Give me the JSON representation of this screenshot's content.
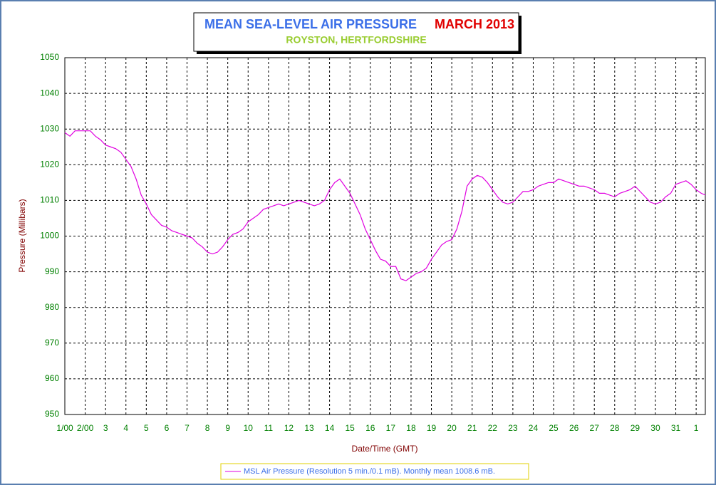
{
  "chart_data": {
    "type": "line",
    "title": "MEAN SEA-LEVEL AIR PRESSURE",
    "period": "MARCH 2013",
    "subtitle": "ROYSTON, HERTFORDSHIRE",
    "xlabel": "Date/Time (GMT)",
    "ylabel": "Pressure (Millibars)",
    "xlim": [
      0,
      31.45
    ],
    "ylim": [
      950,
      1050
    ],
    "yticks": [
      950,
      960,
      970,
      980,
      990,
      1000,
      1010,
      1020,
      1030,
      1040,
      1050
    ],
    "xticks": [
      {
        "value": 0,
        "label": "1/00"
      },
      {
        "value": 1,
        "label": "2/00"
      },
      {
        "value": 2,
        "label": "3"
      },
      {
        "value": 3,
        "label": "4"
      },
      {
        "value": 4,
        "label": "5"
      },
      {
        "value": 5,
        "label": "6"
      },
      {
        "value": 6,
        "label": "7"
      },
      {
        "value": 7,
        "label": "8"
      },
      {
        "value": 8,
        "label": "9"
      },
      {
        "value": 9,
        "label": "10"
      },
      {
        "value": 10,
        "label": "11"
      },
      {
        "value": 11,
        "label": "12"
      },
      {
        "value": 12,
        "label": "13"
      },
      {
        "value": 13,
        "label": "14"
      },
      {
        "value": 14,
        "label": "15"
      },
      {
        "value": 15,
        "label": "16"
      },
      {
        "value": 16,
        "label": "17"
      },
      {
        "value": 17,
        "label": "18"
      },
      {
        "value": 18,
        "label": "19"
      },
      {
        "value": 19,
        "label": "20"
      },
      {
        "value": 20,
        "label": "21"
      },
      {
        "value": 21,
        "label": "22"
      },
      {
        "value": 22,
        "label": "23"
      },
      {
        "value": 23,
        "label": "24"
      },
      {
        "value": 24,
        "label": "25"
      },
      {
        "value": 25,
        "label": "26"
      },
      {
        "value": 26,
        "label": "27"
      },
      {
        "value": 27,
        "label": "28"
      },
      {
        "value": 28,
        "label": "29"
      },
      {
        "value": 29,
        "label": "30"
      },
      {
        "value": 30,
        "label": "31"
      },
      {
        "value": 31,
        "label": "1"
      }
    ],
    "grid": true,
    "x": [
      0,
      0.25,
      0.5,
      0.75,
      1,
      1.25,
      1.5,
      1.75,
      2,
      2.25,
      2.5,
      2.75,
      3,
      3.25,
      3.5,
      3.75,
      4,
      4.25,
      4.5,
      4.75,
      5,
      5.25,
      5.5,
      5.75,
      6,
      6.25,
      6.5,
      6.75,
      7,
      7.25,
      7.5,
      7.75,
      8,
      8.25,
      8.5,
      8.75,
      9,
      9.25,
      9.5,
      9.75,
      10,
      10.25,
      10.5,
      10.75,
      11,
      11.25,
      11.5,
      11.75,
      12,
      12.25,
      12.5,
      12.75,
      13,
      13.25,
      13.5,
      13.75,
      14,
      14.25,
      14.5,
      14.75,
      15,
      15.25,
      15.5,
      15.75,
      16,
      16.25,
      16.5,
      16.75,
      17,
      17.25,
      17.5,
      17.75,
      18,
      18.25,
      18.5,
      18.75,
      19,
      19.25,
      19.5,
      19.75,
      20,
      20.25,
      20.5,
      20.75,
      21,
      21.25,
      21.5,
      21.75,
      22,
      22.25,
      22.5,
      22.75,
      23,
      23.25,
      23.5,
      23.75,
      24,
      24.25,
      24.5,
      24.75,
      25,
      25.25,
      25.5,
      25.75,
      26,
      26.25,
      26.5,
      26.75,
      27,
      27.25,
      27.5,
      27.75,
      28,
      28.25,
      28.5,
      28.75,
      29,
      29.25,
      29.5,
      29.75,
      30,
      30.25,
      30.5,
      30.75,
      31,
      31.25,
      31.45
    ],
    "series": [
      {
        "name": "MSL Air Pressure (Resolution 5 min./0.1 mB). Monthly mean 1008.6 mB.",
        "color": "#e000e0",
        "values": [
          1029,
          1028,
          1029.5,
          1029.5,
          1029.5,
          1029.5,
          1028,
          1027,
          1025.5,
          1025,
          1024.5,
          1023.5,
          1021.5,
          1019.5,
          1016,
          1011.5,
          1009,
          1006,
          1004.5,
          1003,
          1002.5,
          1001.5,
          1001,
          1000.5,
          1000,
          999.5,
          998,
          997,
          995.5,
          995,
          995.5,
          997,
          999,
          1000.5,
          1001,
          1002,
          1004,
          1005,
          1006,
          1007.5,
          1008,
          1008.5,
          1009,
          1008.5,
          1009,
          1009.5,
          1010,
          1009.5,
          1009,
          1008.5,
          1009,
          1010,
          1013,
          1015,
          1016,
          1014,
          1012,
          1009,
          1006,
          1002,
          999,
          996,
          993.5,
          993,
          991.5,
          991.5,
          988,
          987.5,
          988.5,
          989.5,
          990,
          991,
          993.5,
          995.5,
          997.5,
          998.5,
          999,
          1002,
          1007,
          1014,
          1016,
          1017,
          1016.5,
          1015,
          1013,
          1011,
          1009.5,
          1009,
          1009.5,
          1011,
          1012.5,
          1012.5,
          1013,
          1014,
          1014.5,
          1015,
          1015,
          1016,
          1015.5,
          1015,
          1014.5,
          1014,
          1014,
          1013.5,
          1013,
          1012,
          1012,
          1011.5,
          1011,
          1012,
          1012.5,
          1013,
          1014,
          1012.5,
          1011,
          1009.5,
          1009,
          1009.5,
          1011,
          1012,
          1014.5,
          1015,
          1015.5,
          1014.5,
          1013,
          1012,
          1011.5
        ]
      }
    ]
  }
}
